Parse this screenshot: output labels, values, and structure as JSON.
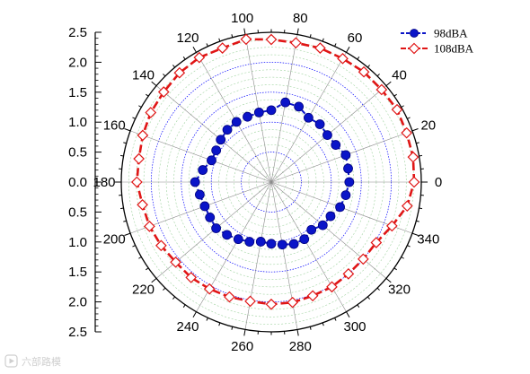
{
  "chart_data": {
    "type": "polar",
    "title": "",
    "radial_axis": {
      "range": [
        0,
        2.5
      ],
      "tick_labels": [
        "2.5",
        "2.0",
        "1.5",
        "1.0",
        "0.5",
        "0.0",
        "0.5",
        "1.0",
        "1.5",
        "2.0",
        "2.5"
      ],
      "tick_values": [
        2.5,
        2.0,
        1.5,
        1.0,
        0.5,
        0.0,
        0.5,
        1.0,
        1.5,
        2.0,
        2.5
      ],
      "minor_ticks_per_interval": 4,
      "position": "left"
    },
    "angular_axis": {
      "unit": "degrees",
      "tick_labels": [
        "0",
        "20",
        "40",
        "60",
        "80",
        "100",
        "120",
        "140",
        "160",
        "180",
        "200",
        "220",
        "240",
        "260",
        "280",
        "300",
        "320",
        "340"
      ],
      "tick_values": [
        0,
        20,
        40,
        60,
        80,
        100,
        120,
        140,
        160,
        180,
        200,
        220,
        240,
        260,
        280,
        300,
        320,
        340
      ],
      "direction": "counterclockwise",
      "zero": "right"
    },
    "grid": {
      "radial_major": [
        0.5,
        1.0,
        1.5,
        2.0
      ],
      "radial_minor_step": 0.125,
      "spokes_every_degrees": 20,
      "major_color": "#0000ff",
      "minor_color": "#9fd39f",
      "spoke_color": "#8a8a8a"
    },
    "legend": {
      "placement": "top-right",
      "entries": [
        "98dBA",
        "108dBA"
      ]
    },
    "series": [
      {
        "name": "98dBA",
        "color": "#0a14c8",
        "line_style": "dashed",
        "marker": "filled-circle",
        "theta": [
          0,
          10,
          20,
          30,
          40,
          50,
          60,
          70,
          80,
          90,
          100,
          110,
          120,
          130,
          140,
          150,
          160,
          170,
          180,
          190,
          200,
          210,
          220,
          230,
          240,
          250,
          260,
          270,
          280,
          290,
          300,
          310,
          320,
          330,
          340,
          350
        ],
        "r": [
          1.3,
          1.3,
          1.32,
          1.24,
          1.22,
          1.26,
          1.24,
          1.34,
          1.35,
          1.2,
          1.18,
          1.16,
          1.16,
          1.14,
          1.1,
          1.06,
          1.06,
          1.16,
          1.27,
          1.21,
          1.18,
          1.18,
          1.2,
          1.15,
          1.1,
          1.06,
          1.01,
          1.03,
          1.06,
          1.1,
          1.1,
          1.04,
          1.12,
          1.14,
          1.22,
          1.26
        ]
      },
      {
        "name": "108dBA",
        "color": "#e01515",
        "line_style": "dashed",
        "marker": "open-diamond",
        "theta": [
          0,
          10,
          20,
          30,
          40,
          50,
          60,
          70,
          80,
          90,
          100,
          110,
          120,
          130,
          140,
          150,
          160,
          170,
          180,
          190,
          200,
          210,
          220,
          230,
          240,
          250,
          260,
          270,
          280,
          290,
          300,
          310,
          320,
          330,
          340,
          350
        ],
        "r": [
          2.38,
          2.4,
          2.4,
          2.42,
          2.4,
          2.4,
          2.38,
          2.38,
          2.36,
          2.38,
          2.42,
          2.38,
          2.4,
          2.38,
          2.34,
          2.32,
          2.28,
          2.24,
          2.24,
          2.18,
          2.16,
          2.12,
          2.08,
          2.08,
          2.06,
          2.04,
          2.02,
          2.04,
          2.04,
          2.02,
          2.02,
          2.0,
          2.0,
          2.02,
          2.14,
          2.3
        ]
      }
    ]
  },
  "watermark": {
    "text": "六部路模",
    "icon": "play-badge-icon"
  }
}
